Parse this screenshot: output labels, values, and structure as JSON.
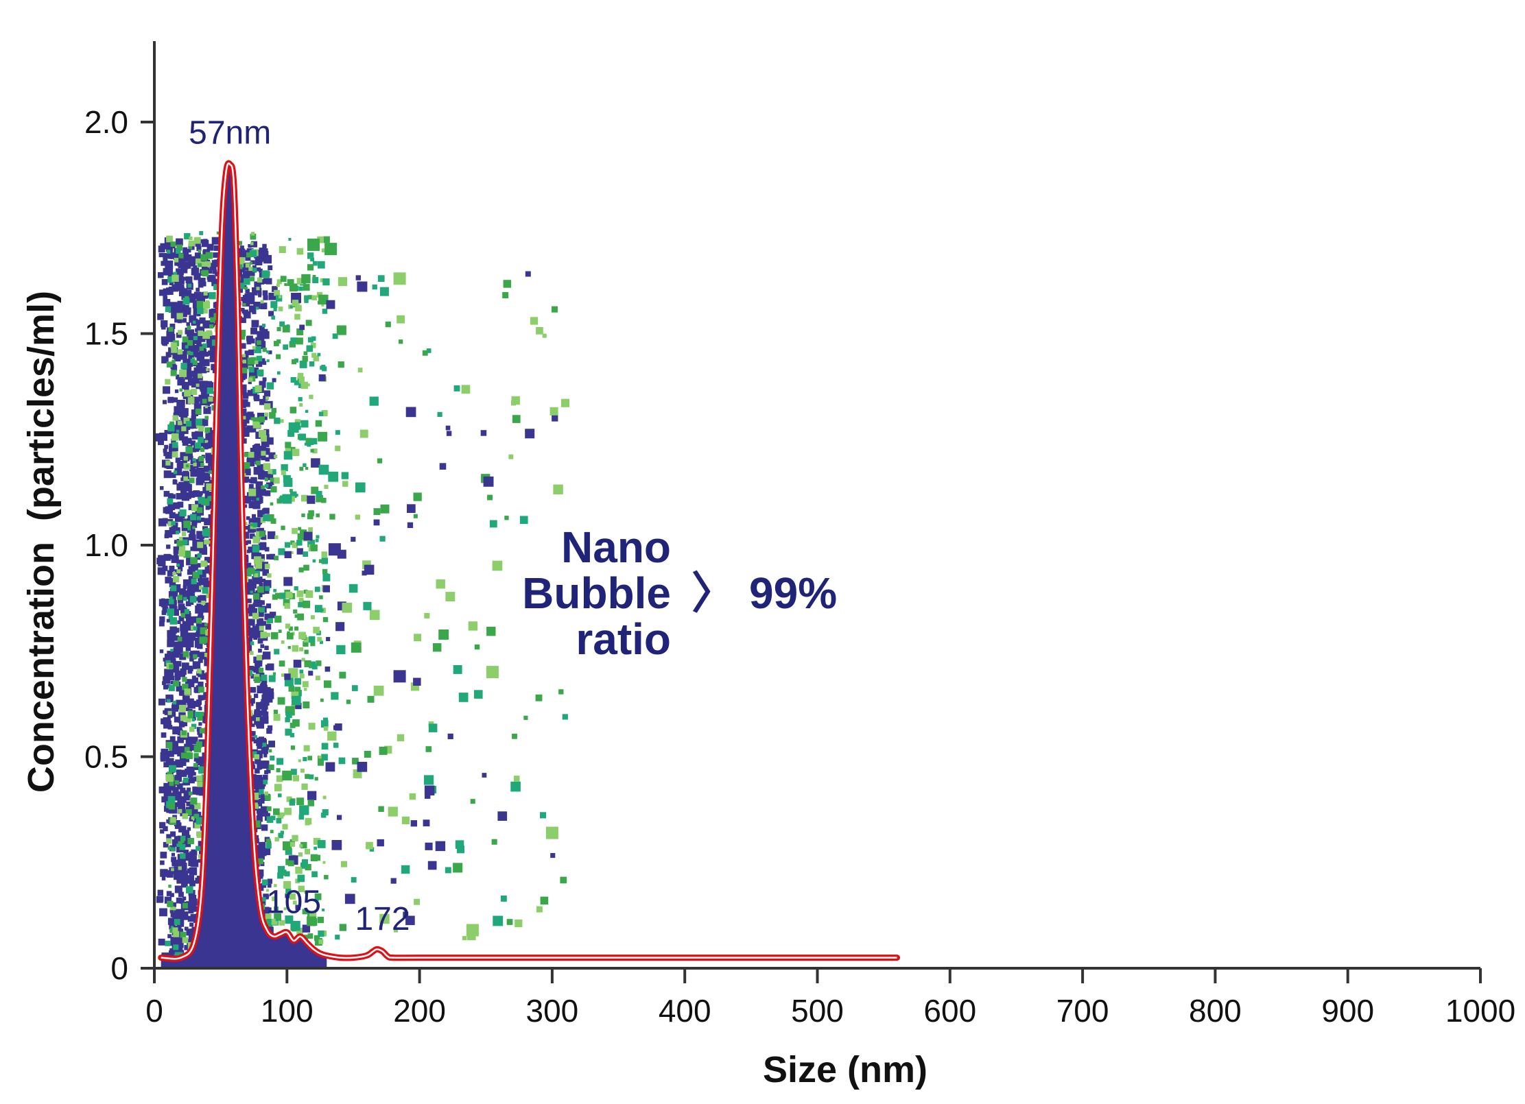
{
  "chart_data": {
    "type": "scatter",
    "title": "",
    "xlabel": "Size (nm)",
    "ylabel": "Concentration  (particles/ml)",
    "xlim": [
      0,
      1000
    ],
    "ylim": [
      0,
      2.2
    ],
    "x_ticks": [
      0,
      100,
      200,
      300,
      400,
      500,
      600,
      700,
      800,
      900,
      1000
    ],
    "x_tick_labels": [
      "0",
      "100",
      "200",
      "300",
      "400",
      "500",
      "600",
      "700",
      "800",
      "900",
      "1000"
    ],
    "y_ticks": [
      0,
      0.5,
      1.0,
      1.5,
      2.0
    ],
    "y_tick_labels": [
      "0",
      "0.5",
      "1.0",
      "1.5",
      "2.0"
    ],
    "grid": false,
    "colors": {
      "scatter_primary": "#3a3590",
      "scatter_green": "#3aa84a",
      "scatter_teal": "#20a878",
      "scatter_light": "#8ccf6a",
      "curve": "#e10f14",
      "curve_inner": "#ffffff",
      "text_blue": "#1f2478",
      "axis": "#333333"
    },
    "series": [
      {
        "name": "size distribution",
        "type": "line",
        "x": [
          5,
          20,
          30,
          36,
          40,
          44,
          48,
          51,
          54,
          57,
          60,
          63,
          66,
          70,
          75,
          80,
          85,
          90,
          95,
          100,
          105,
          110,
          115,
          120,
          125,
          130,
          140,
          150,
          160,
          165,
          168,
          172,
          176,
          180,
          200,
          300,
          400,
          500,
          560
        ],
        "y": [
          0.025,
          0.025,
          0.06,
          0.2,
          0.5,
          0.95,
          1.45,
          1.75,
          1.88,
          1.9,
          1.85,
          1.55,
          1.1,
          0.65,
          0.3,
          0.14,
          0.09,
          0.075,
          0.08,
          0.085,
          0.065,
          0.075,
          0.06,
          0.045,
          0.035,
          0.03,
          0.025,
          0.025,
          0.03,
          0.04,
          0.045,
          0.04,
          0.028,
          0.025,
          0.025,
          0.025,
          0.025,
          0.025,
          0.025
        ]
      }
    ],
    "peak_labels": [
      {
        "x": 57,
        "y": 1.9,
        "text": "57nm"
      },
      {
        "x": 105,
        "y": 0.085,
        "text": "105"
      },
      {
        "x": 172,
        "y": 0.045,
        "text": "172"
      }
    ],
    "annotation": {
      "lines": [
        "Nano",
        "Bubble",
        "ratio"
      ],
      "symbol": "〉",
      "value": "99%"
    }
  }
}
